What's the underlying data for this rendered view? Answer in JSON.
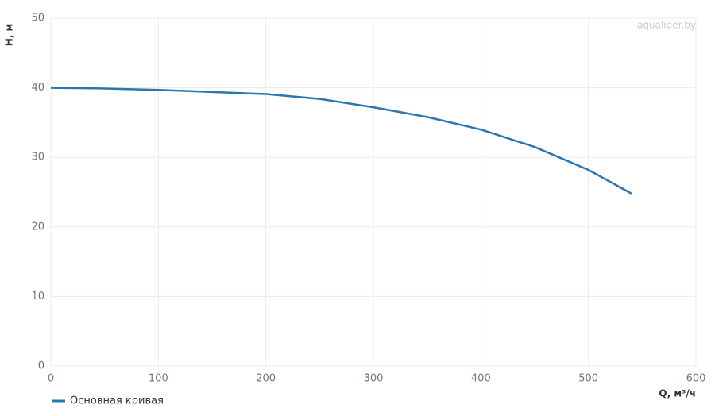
{
  "chart_data": {
    "type": "line",
    "watermark": "aqualider.by",
    "x_label": "Q, м³/ч",
    "y_label": "H, м",
    "x": [
      0,
      50,
      100,
      150,
      200,
      250,
      300,
      350,
      400,
      450,
      500,
      540
    ],
    "series": [
      {
        "name": "Основная кривая",
        "color": "#2a77b0",
        "values": [
          40,
          39.9,
          39.7,
          39.4,
          39.1,
          38.4,
          37.2,
          35.8,
          34.0,
          31.5,
          28.2,
          24.8
        ]
      }
    ],
    "xlim": [
      0,
      600
    ],
    "xticks": [
      0,
      100,
      200,
      300,
      400,
      500,
      600
    ],
    "ylim": [
      0,
      50
    ],
    "yticks": [
      0,
      10,
      20,
      30,
      40,
      50
    ],
    "grid": true,
    "legend": "bottom-left"
  }
}
